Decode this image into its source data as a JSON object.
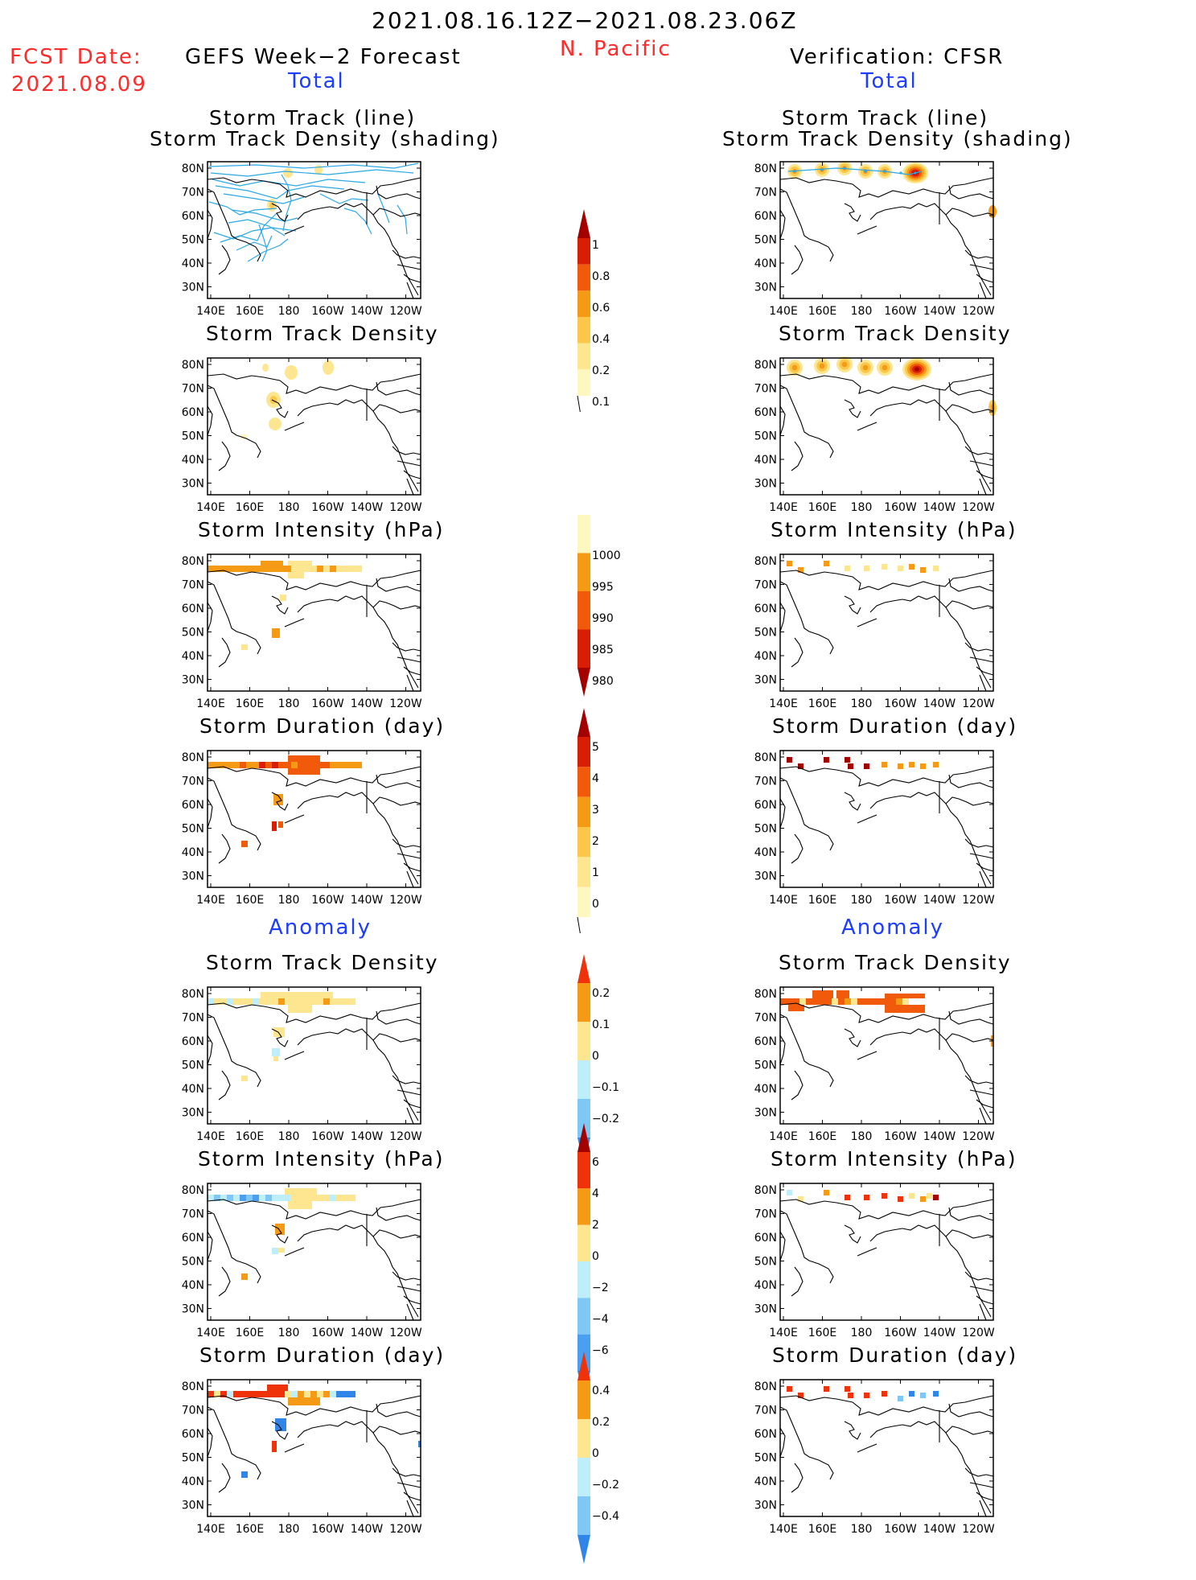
{
  "header": {
    "period": "2021.08.16.12Z−2021.08.23.06Z",
    "region": "N. Pacific",
    "fcst_label": "FCST Date:",
    "fcst_date": "2021.08.09",
    "left_title": "GEFS Week−2 Forecast",
    "right_title": "Verification: CFSR",
    "total_left": "Total",
    "total_right": "Total",
    "anomaly_left": "Anomaly",
    "anomaly_right": "Anomaly"
  },
  "axes": {
    "lat_labels": [
      "80N",
      "70N",
      "60N",
      "50N",
      "40N",
      "30N"
    ],
    "lon_labels": [
      "140E",
      "160E",
      "180",
      "160W",
      "140W",
      "120W"
    ]
  },
  "panels": {
    "track_title_1": "Storm Track (line)",
    "track_title_2": "Storm Track Density (shading)",
    "density": "Storm Track Density",
    "intensity": "Storm Intensity (hPa)",
    "duration": "Storm Duration (day)"
  },
  "colorbars": {
    "density": {
      "labels": [
        "1",
        "0.8",
        "0.6",
        "0.4",
        "0.2",
        "0.1"
      ],
      "colors": [
        "#a50000",
        "#d81e05",
        "#f05a0a",
        "#f59a14",
        "#fbc74a",
        "#fde68f",
        "#fff7c0"
      ]
    },
    "intensity": {
      "labels": [
        "1000",
        "995",
        "990",
        "985",
        "980"
      ],
      "colors": [
        "#fff7c0",
        "#f59a14",
        "#f05a0a",
        "#d81e05",
        "#a50000"
      ]
    },
    "duration": {
      "labels": [
        "5",
        "4",
        "3",
        "2",
        "1",
        "0"
      ],
      "colors": [
        "#a50000",
        "#d81e05",
        "#f05a0a",
        "#f59a14",
        "#fbc74a",
        "#fde68f",
        "#fff7c0"
      ]
    },
    "anom_density": {
      "labels": [
        "0.2",
        "0.1",
        "0",
        "−0.1",
        "−0.2"
      ],
      "colors": [
        "#f0320a",
        "#f59a14",
        "#fde68f",
        "#bdeefa",
        "#7fc8f5",
        "#2f86e8"
      ]
    },
    "anom_intensity": {
      "labels": [
        "6",
        "4",
        "2",
        "0",
        "−2",
        "−4",
        "−6"
      ],
      "colors": [
        "#a50000",
        "#f0320a",
        "#f59a14",
        "#fde68f",
        "#bdeefa",
        "#7fc8f5",
        "#4a9ff0",
        "#2f86e8"
      ]
    },
    "anom_duration": {
      "labels": [
        "0.4",
        "0.2",
        "0",
        "−0.2",
        "−0.4"
      ],
      "colors": [
        "#f0320a",
        "#f59a14",
        "#fde68f",
        "#bdeefa",
        "#7fc8f5",
        "#2f86e8"
      ]
    }
  }
}
